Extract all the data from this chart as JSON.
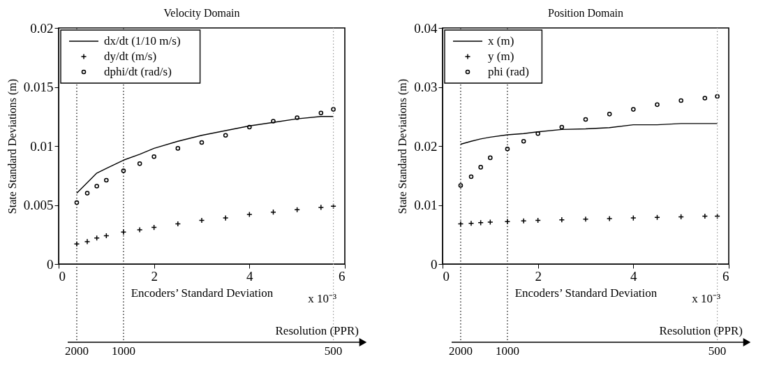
{
  "chart_data": [
    {
      "type": "line",
      "title": "Velocity Domain",
      "xlabel": "Encoders’ Standard Deviation",
      "ylabel": "State Standard Deviations (m)",
      "x": [
        0.38,
        0.6,
        0.8,
        1.0,
        1.36,
        1.7,
        2.0,
        2.5,
        3.0,
        3.5,
        4.0,
        4.5,
        5.0,
        5.5,
        5.76
      ],
      "series": [
        {
          "name": "dx/dt (1/10 m/s)",
          "line_style": "solid",
          "marker": "none",
          "color": "#000000",
          "values": [
            0.006,
            0.0069,
            0.0077,
            0.0081,
            0.0088,
            0.0093,
            0.0098,
            0.0104,
            0.0109,
            0.0113,
            0.0117,
            0.012,
            0.0123,
            0.0125,
            0.0125
          ]
        },
        {
          "name": "dy/dt (m/s)",
          "type": "scatter",
          "marker": "cross",
          "color": "#000000",
          "values": [
            0.0017,
            0.0019,
            0.0022,
            0.0024,
            0.0027,
            0.0029,
            0.0031,
            0.0034,
            0.0037,
            0.0039,
            0.0042,
            0.0044,
            0.0046,
            0.0048,
            0.0049
          ]
        },
        {
          "name": "dphi/dt (rad/s)",
          "type": "scatter",
          "marker": "circle",
          "color": "#000000",
          "values": [
            0.0052,
            0.006,
            0.0066,
            0.0071,
            0.0079,
            0.0085,
            0.0091,
            0.0098,
            0.0103,
            0.0109,
            0.0116,
            0.0121,
            0.0124,
            0.0128,
            0.0131
          ]
        }
      ],
      "xlim": [
        0,
        6
      ],
      "xticks": [
        0,
        2,
        4,
        6
      ],
      "ylim": [
        0,
        0.02
      ],
      "yticks": [
        0,
        0.005,
        0.01,
        0.015,
        0.02
      ],
      "ref_lines": [
        {
          "axis": "x",
          "value": 0.38,
          "line_style": "dotted",
          "color": "#000000"
        },
        {
          "axis": "x",
          "value": 1.36,
          "line_style": "dotted",
          "color": "#000000"
        },
        {
          "axis": "x",
          "value": 5.76,
          "line_style": "dotted",
          "color": "#999999"
        }
      ],
      "annotations": [
        "x 10⁻³",
        "Resolution (PPR)",
        "2000",
        "1000",
        "500"
      ],
      "legend": "top left",
      "grid": false
    },
    {
      "type": "line",
      "title": "Position Domain",
      "xlabel": "Encoders’ Standard Deviation",
      "ylabel": "State Standard Deviations (m)",
      "x": [
        0.38,
        0.6,
        0.8,
        1.0,
        1.36,
        1.7,
        2.0,
        2.5,
        3.0,
        3.5,
        4.0,
        4.5,
        5.0,
        5.5,
        5.76
      ],
      "series": [
        {
          "name": "x (m)",
          "line_style": "solid",
          "marker": "none",
          "color": "#000000",
          "values": [
            0.0203,
            0.0208,
            0.0212,
            0.0215,
            0.0219,
            0.0221,
            0.0224,
            0.0228,
            0.0229,
            0.0231,
            0.0236,
            0.0236,
            0.0238,
            0.0238,
            0.0238
          ]
        },
        {
          "name": "y (m)",
          "type": "scatter",
          "marker": "cross",
          "color": "#000000",
          "values": [
            0.0068,
            0.0069,
            0.007,
            0.0071,
            0.0072,
            0.0073,
            0.0074,
            0.0075,
            0.0076,
            0.0077,
            0.0078,
            0.0079,
            0.008,
            0.0081,
            0.0081
          ]
        },
        {
          "name": "phi (rad)",
          "type": "scatter",
          "marker": "circle",
          "color": "#000000",
          "values": [
            0.0133,
            0.0148,
            0.0164,
            0.018,
            0.0195,
            0.0208,
            0.0221,
            0.0232,
            0.0245,
            0.0254,
            0.0262,
            0.027,
            0.0277,
            0.0281,
            0.0284
          ]
        }
      ],
      "xlim": [
        0,
        6
      ],
      "xticks": [
        0,
        2,
        4,
        6
      ],
      "ylim": [
        0,
        0.04
      ],
      "yticks": [
        0,
        0.01,
        0.02,
        0.03,
        0.04
      ],
      "ref_lines": [
        {
          "axis": "x",
          "value": 0.38,
          "line_style": "dotted",
          "color": "#000000"
        },
        {
          "axis": "x",
          "value": 1.36,
          "line_style": "dotted",
          "color": "#000000"
        },
        {
          "axis": "x",
          "value": 5.76,
          "line_style": "dotted",
          "color": "#999999"
        }
      ],
      "annotations": [
        "x 10⁻³",
        "Resolution (PPR)",
        "2000",
        "1000",
        "500"
      ],
      "legend": "top left",
      "grid": false
    }
  ]
}
